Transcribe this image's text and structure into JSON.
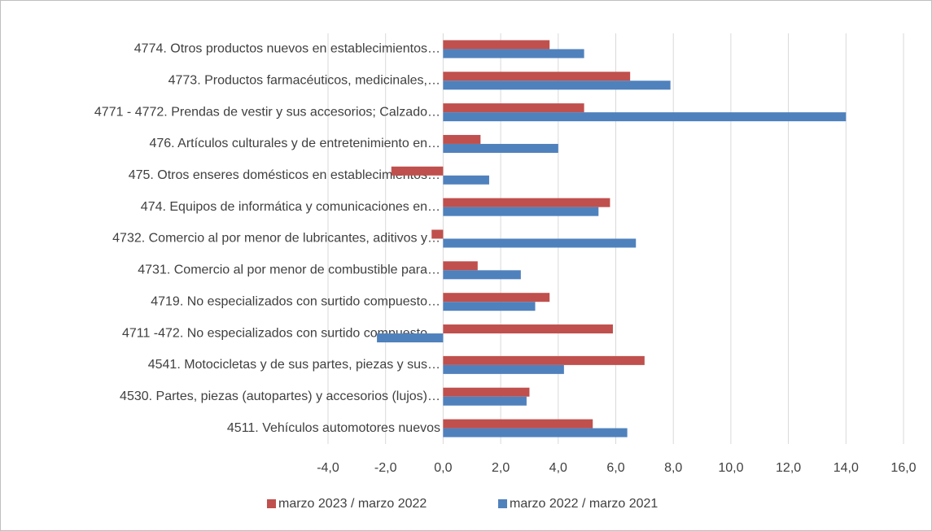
{
  "chart_data": {
    "type": "hbar",
    "categories": [
      "4774. Otros productos nuevos en establecimientos…",
      "4773. Productos farmacéuticos, medicinales,…",
      "4771 - 4772. Prendas de vestir y sus accesorios; Calzado…",
      "476. Artículos culturales y de entretenimiento en…",
      "475. Otros enseres domésticos en establecimientos…",
      "474. Equipos de informática y comunicaciones en…",
      "4732. Comercio al por menor de lubricantes, aditivos y…",
      "4731. Comercio al por menor de combustible para…",
      "4719. No especializados con surtido compuesto…",
      "4711 -472. No especializados con surtido compuesto…",
      "4541.  Motocicletas y de sus partes, piezas y sus…",
      "4530. Partes, piezas (autopartes) y accesorios (lujos)…",
      "4511. Vehículos automotores nuevos"
    ],
    "series": [
      {
        "name": "marzo 2023 / marzo 2022",
        "color": "#c0504d",
        "values": [
          3.7,
          6.5,
          4.9,
          1.3,
          -1.8,
          5.8,
          -0.4,
          1.2,
          3.7,
          5.9,
          7.0,
          3.0,
          5.2
        ]
      },
      {
        "name": "marzo 2022 / marzo 2021",
        "color": "#4f81bd",
        "values": [
          4.9,
          7.9,
          14.0,
          4.0,
          1.6,
          5.4,
          6.7,
          2.7,
          3.2,
          -2.3,
          4.2,
          2.9,
          6.4
        ]
      }
    ],
    "xlim": [
      -4,
      16
    ],
    "xticks": [
      {
        "value": -4,
        "label": "-4,0"
      },
      {
        "value": -2,
        "label": "-2,0"
      },
      {
        "value": 0,
        "label": "0,0"
      },
      {
        "value": 2,
        "label": "2,0"
      },
      {
        "value": 4,
        "label": "4,0"
      },
      {
        "value": 6,
        "label": "6,0"
      },
      {
        "value": 8,
        "label": "8,0"
      },
      {
        "value": 10,
        "label": "10,0"
      },
      {
        "value": 12,
        "label": "12,0"
      },
      {
        "value": 14,
        "label": "14,0"
      },
      {
        "value": 16,
        "label": "16,0"
      }
    ],
    "grid": true,
    "legend": "bottom"
  }
}
